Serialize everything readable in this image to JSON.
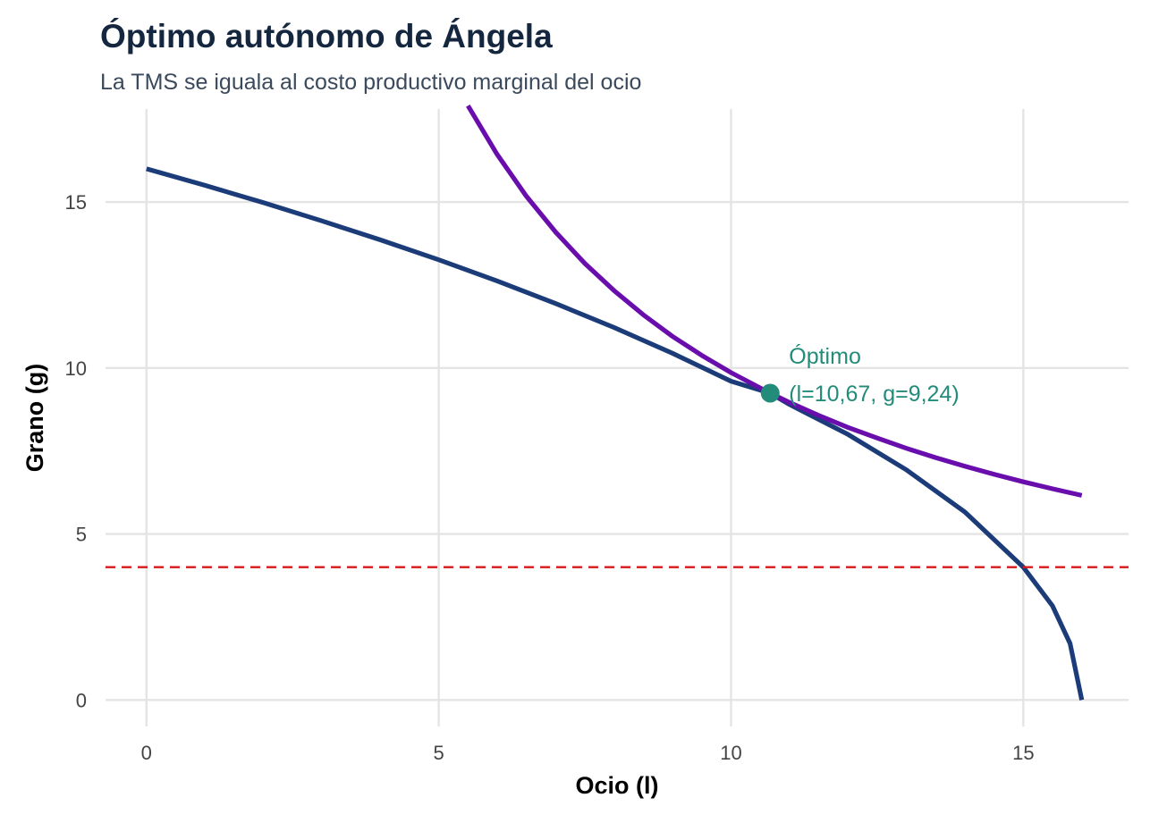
{
  "chart_data": {
    "type": "line",
    "title": "Óptimo autónomo de Ángela",
    "subtitle": "La TMS se iguala al costo productivo marginal del ocio",
    "xlabel": "Ocio (l)",
    "ylabel": "Grano (g)",
    "xlim": [
      -0.7,
      16.8
    ],
    "ylim": [
      -0.8,
      17.8
    ],
    "x_ticks": [
      0,
      5,
      10,
      15
    ],
    "y_ticks": [
      0,
      5,
      10,
      15
    ],
    "x_tick_labels": [
      "0",
      "5",
      "10",
      "15"
    ],
    "y_tick_labels": [
      "0",
      "5",
      "10",
      "15"
    ],
    "grid": true,
    "series": [
      {
        "color": "#1b3c78",
        "points": [
          [
            0,
            16.0
          ],
          [
            1,
            15.5
          ],
          [
            2,
            14.98
          ],
          [
            3,
            14.43
          ],
          [
            4,
            13.86
          ],
          [
            5,
            13.26
          ],
          [
            6,
            12.62
          ],
          [
            7,
            11.94
          ],
          [
            8,
            11.22
          ],
          [
            9,
            10.44
          ],
          [
            10,
            9.6
          ],
          [
            10.67,
            9.24
          ],
          [
            11,
            8.9
          ],
          [
            12,
            8.0
          ],
          [
            13,
            6.93
          ],
          [
            14,
            5.66
          ],
          [
            15,
            4.0
          ],
          [
            15.5,
            2.83
          ],
          [
            15.8,
            1.7
          ],
          [
            16,
            0.0
          ]
        ]
      },
      {
        "color": "#6a0dad",
        "points": [
          [
            5.5,
            17.9
          ],
          [
            6,
            16.43
          ],
          [
            6.5,
            15.17
          ],
          [
            7,
            14.09
          ],
          [
            7.5,
            13.15
          ],
          [
            8,
            12.33
          ],
          [
            8.5,
            11.6
          ],
          [
            9,
            10.95
          ],
          [
            9.5,
            10.38
          ],
          [
            10,
            9.86
          ],
          [
            10.67,
            9.24
          ],
          [
            11,
            8.96
          ],
          [
            11.5,
            8.57
          ],
          [
            12,
            8.21
          ],
          [
            12.5,
            7.89
          ],
          [
            13,
            7.58
          ],
          [
            13.5,
            7.3
          ],
          [
            14,
            7.04
          ],
          [
            14.5,
            6.8
          ],
          [
            15,
            6.57
          ],
          [
            15.5,
            6.36
          ],
          [
            16,
            6.16
          ]
        ]
      },
      {
        "color": "#d7191c",
        "dashed": true,
        "hline": 4.0
      }
    ],
    "point": {
      "x": 10.67,
      "y": 9.24,
      "color": "#238b7a"
    },
    "annotation": {
      "line1": "Óptimo",
      "line2": "(l=10,67, g=9,24)",
      "color": "#238b7a"
    }
  }
}
